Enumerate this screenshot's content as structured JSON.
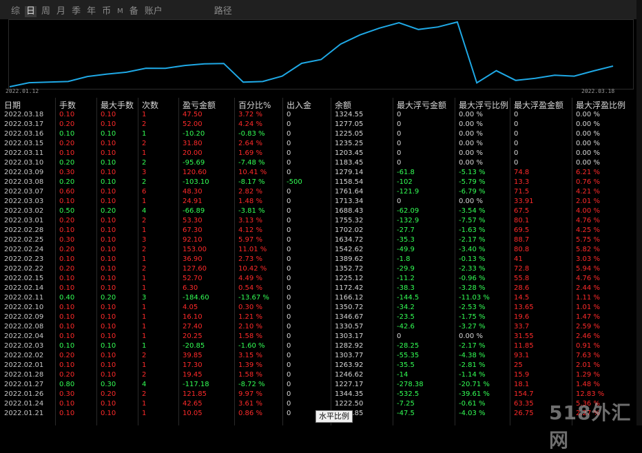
{
  "tabs": [
    "综",
    "日",
    "周",
    "月",
    "季",
    "年",
    "币",
    "M",
    "备",
    "账户",
    "路径"
  ],
  "active_tab": 1,
  "chart": {
    "start_date": "2022.01.12",
    "end_date": "2022.03.18",
    "line_color": "#1fa9e6",
    "series": [
      1120,
      1160,
      1166,
      1172,
      1222,
      1246,
      1264,
      1304,
      1303,
      1331,
      1347,
      1351,
      1166,
      1172,
      1225,
      1352,
      1390,
      1543,
      1634,
      1702,
      1755,
      1688,
      1713,
      1762,
      1158,
      1279,
      1183,
      1204,
      1235,
      1225,
      1277,
      1325
    ]
  },
  "table": {
    "headers": [
      "日期",
      "手数",
      "最大手数",
      "次数",
      "盈亏金额",
      "百分比%",
      "出入金",
      "余额",
      "最大浮亏金额",
      "最大浮亏比例",
      "最大浮盈金额",
      "最大浮盈比例"
    ],
    "rows": [
      [
        "2022.03.18",
        "0.10",
        "0.10",
        "1",
        "47.50",
        "3.72 %",
        "0",
        "1324.55",
        "0",
        "0.00 %",
        "0",
        "0.00 %"
      ],
      [
        "2022.03.17",
        "0.20",
        "0.10",
        "2",
        "52.00",
        "4.24 %",
        "0",
        "1277.05",
        "0",
        "0.00 %",
        "0",
        "0.00 %"
      ],
      [
        "2022.03.16",
        "0.10",
        "0.10",
        "1",
        "-10.20",
        "-0.83 %",
        "0",
        "1225.05",
        "0",
        "0.00 %",
        "0",
        "0.00 %"
      ],
      [
        "2022.03.15",
        "0.20",
        "0.10",
        "2",
        "31.80",
        "2.64 %",
        "0",
        "1235.25",
        "0",
        "0.00 %",
        "0",
        "0.00 %"
      ],
      [
        "2022.03.11",
        "0.10",
        "0.10",
        "1",
        "20.00",
        "1.69 %",
        "0",
        "1203.45",
        "0",
        "0.00 %",
        "0",
        "0.00 %"
      ],
      [
        "2022.03.10",
        "0.20",
        "0.10",
        "2",
        "-95.69",
        "-7.48 %",
        "0",
        "1183.45",
        "0",
        "0.00 %",
        "0",
        "0.00 %"
      ],
      [
        "2022.03.09",
        "0.30",
        "0.10",
        "3",
        "120.60",
        "10.41 %",
        "0",
        "1279.14",
        "-61.8",
        "-5.13 %",
        "74.8",
        "6.21 %"
      ],
      [
        "2022.03.08",
        "0.20",
        "0.10",
        "2",
        "-103.10",
        "-8.17 %",
        "-500",
        "1158.54",
        "-102",
        "-5.79 %",
        "13.3",
        "0.76 %"
      ],
      [
        "2022.03.07",
        "0.60",
        "0.10",
        "6",
        "48.30",
        "2.82 %",
        "0",
        "1761.64",
        "-121.9",
        "-6.79 %",
        "71.5",
        "4.21 %"
      ],
      [
        "2022.03.03",
        "0.10",
        "0.10",
        "1",
        "24.91",
        "1.48 %",
        "0",
        "1713.34",
        "0",
        "0.00 %",
        "33.91",
        "2.01 %"
      ],
      [
        "2022.03.02",
        "0.50",
        "0.20",
        "4",
        "-66.89",
        "-3.81 %",
        "0",
        "1688.43",
        "-62.09",
        "-3.54 %",
        "67.5",
        "4.00 %"
      ],
      [
        "2022.03.01",
        "0.20",
        "0.10",
        "2",
        "53.30",
        "3.13 %",
        "0",
        "1755.32",
        "-132.9",
        "-7.57 %",
        "80.1",
        "4.76 %"
      ],
      [
        "2022.02.28",
        "0.10",
        "0.10",
        "1",
        "67.30",
        "4.12 %",
        "0",
        "1702.02",
        "-27.7",
        "-1.63 %",
        "69.5",
        "4.25 %"
      ],
      [
        "2022.02.25",
        "0.30",
        "0.10",
        "3",
        "92.10",
        "5.97 %",
        "0",
        "1634.72",
        "-35.3",
        "-2.17 %",
        "88.7",
        "5.75 %"
      ],
      [
        "2022.02.24",
        "0.20",
        "0.10",
        "2",
        "153.00",
        "11.01 %",
        "0",
        "1542.62",
        "-49.9",
        "-3.40 %",
        "80.8",
        "5.82 %"
      ],
      [
        "2022.02.23",
        "0.10",
        "0.10",
        "1",
        "36.90",
        "2.73 %",
        "0",
        "1389.62",
        "-1.8",
        "-0.13 %",
        "41",
        "3.03 %"
      ],
      [
        "2022.02.22",
        "0.20",
        "0.10",
        "2",
        "127.60",
        "10.42 %",
        "0",
        "1352.72",
        "-29.9",
        "-2.33 %",
        "72.8",
        "5.94 %"
      ],
      [
        "2022.02.15",
        "0.10",
        "0.10",
        "1",
        "52.70",
        "4.49 %",
        "0",
        "1225.12",
        "-11.2",
        "-0.96 %",
        "55.8",
        "4.76 %"
      ],
      [
        "2022.02.14",
        "0.10",
        "0.10",
        "1",
        "6.30",
        "0.54 %",
        "0",
        "1172.42",
        "-38.3",
        "-3.28 %",
        "28.6",
        "2.44 %"
      ],
      [
        "2022.02.11",
        "0.40",
        "0.20",
        "3",
        "-184.60",
        "-13.67 %",
        "0",
        "1166.12",
        "-144.5",
        "-11.03 %",
        "14.5",
        "1.11 %"
      ],
      [
        "2022.02.10",
        "0.10",
        "0.10",
        "1",
        "4.05",
        "0.30 %",
        "0",
        "1350.72",
        "-34.2",
        "-2.53 %",
        "13.65",
        "1.01 %"
      ],
      [
        "2022.02.09",
        "0.10",
        "0.10",
        "1",
        "16.10",
        "1.21 %",
        "0",
        "1346.67",
        "-23.5",
        "-1.75 %",
        "19.6",
        "1.47 %"
      ],
      [
        "2022.02.08",
        "0.10",
        "0.10",
        "1",
        "27.40",
        "2.10 %",
        "0",
        "1330.57",
        "-42.6",
        "-3.27 %",
        "33.7",
        "2.59 %"
      ],
      [
        "2022.02.04",
        "0.10",
        "0.10",
        "1",
        "20.25",
        "1.58 %",
        "0",
        "1303.17",
        "0",
        "0.00 %",
        "31.55",
        "2.46 %"
      ],
      [
        "2022.02.03",
        "0.10",
        "0.10",
        "1",
        "-20.85",
        "-1.60 %",
        "0",
        "1282.92",
        "-28.25",
        "-2.17 %",
        "11.85",
        "0.91 %"
      ],
      [
        "2022.02.02",
        "0.20",
        "0.10",
        "2",
        "39.85",
        "3.15 %",
        "0",
        "1303.77",
        "-55.35",
        "-4.38 %",
        "93.1",
        "7.63 %"
      ],
      [
        "2022.02.01",
        "0.10",
        "0.10",
        "1",
        "17.30",
        "1.39 %",
        "0",
        "1263.92",
        "-35.5",
        "-2.81 %",
        "25",
        "2.01 %"
      ],
      [
        "2022.01.28",
        "0.20",
        "0.10",
        "2",
        "19.45",
        "1.58 %",
        "0",
        "1246.62",
        "-14",
        "-1.14 %",
        "15.9",
        "1.29 %"
      ],
      [
        "2022.01.27",
        "0.80",
        "0.30",
        "4",
        "-117.18",
        "-8.72 %",
        "0",
        "1227.17",
        "-278.38",
        "-20.71 %",
        "18.1",
        "1.48 %"
      ],
      [
        "2022.01.26",
        "0.30",
        "0.20",
        "2",
        "121.85",
        "9.97 %",
        "0",
        "1344.35",
        "-532.5",
        "-39.61 %",
        "154.7",
        "12.83 %"
      ],
      [
        "2022.01.24",
        "0.10",
        "0.10",
        "1",
        "42.65",
        "3.61 %",
        "0",
        "1222.50",
        "-7.25",
        "-0.61 %",
        "63.35",
        "5.36 %"
      ],
      [
        "2022.01.21",
        "0.10",
        "0.10",
        "1",
        "10.05",
        "0.86 %",
        "0",
        "1179.85",
        "-47.5",
        "-4.03 %",
        "26.75",
        "2.27 %"
      ]
    ]
  },
  "tooltip": "水平比例",
  "watermark": "518外汇网",
  "colors": {
    "positive": "#ff2a2a",
    "negative": "#33ff55",
    "neutral": "#d8d8d8"
  }
}
